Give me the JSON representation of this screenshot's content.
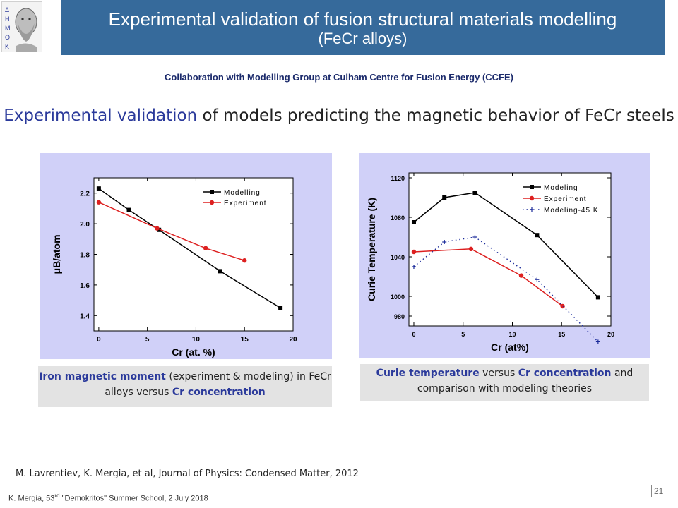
{
  "header": {
    "title": "Experimental validation  of fusion structural materials modelling",
    "subtitle": "(FeCr alloys)",
    "logo_icon": "democritus-logo-icon"
  },
  "collaboration": "Collaboration with Modelling Group at Culham Centre for Fusion Energy (CCFE)",
  "headline": {
    "highlight": "Experimental validation",
    "rest": " of models predicting the magnetic behavior of FeCr steels"
  },
  "caption_left": {
    "part1": "Iron magnetic moment",
    "part2": " (experiment & modeling) in FeCr alloys versus ",
    "part3": "Cr concentration"
  },
  "caption_right": {
    "part1": "Curie temperature",
    "part2": " versus ",
    "part3": "Cr concentration",
    "part4": " and comparison with modeling theories"
  },
  "reference": "M. Lavrentiev, K. Mergia, et al, Journal of Physics: Condensed Matter, 2012",
  "footer": {
    "author": "K. Mergia, 53",
    "sup": "rd",
    "rest": " \"Demokritos\" Summer School, 2 July 2018"
  },
  "page_number": "21",
  "chart_data": [
    {
      "type": "line",
      "xlabel": "Cr (at. %)",
      "ylabel": "μB/atom",
      "xlim": [
        -0.5,
        20
      ],
      "ylim": [
        1.3,
        2.3
      ],
      "xticks": [
        0,
        5,
        10,
        15,
        20
      ],
      "yticks": [
        1.4,
        1.6,
        1.8,
        2.0,
        2.2
      ],
      "xtick_labels": [
        "0",
        "5",
        "10",
        "15",
        "20"
      ],
      "ytick_labels": [
        "1.4",
        "1.6",
        "1.8",
        "2.0",
        "2.2"
      ],
      "legend": "top-right",
      "series": [
        {
          "name": "Modelling",
          "color": "#000000",
          "marker": "square",
          "x": [
            0,
            3.1,
            6.2,
            12.5,
            18.7
          ],
          "y": [
            2.23,
            2.09,
            1.96,
            1.69,
            1.45
          ]
        },
        {
          "name": "Experiment",
          "color": "#dd2020",
          "marker": "circle",
          "x": [
            0,
            6,
            11,
            15
          ],
          "y": [
            2.14,
            1.97,
            1.84,
            1.76
          ]
        }
      ]
    },
    {
      "type": "line",
      "xlabel": "Cr (at%)",
      "ylabel": "Curie Temperature (K)",
      "xlim": [
        -0.5,
        20
      ],
      "ylim": [
        970,
        1125
      ],
      "xticks": [
        0,
        5,
        10,
        15,
        20
      ],
      "yticks": [
        980,
        1000,
        1040,
        1080,
        1120
      ],
      "xtick_labels": [
        "0",
        "5",
        "10",
        "15",
        "20"
      ],
      "ytick_labels": [
        "980",
        "1000",
        "1040",
        "1080",
        "1120"
      ],
      "legend": "top-right",
      "series": [
        {
          "name": "Modeling",
          "color": "#000000",
          "marker": "square",
          "style": "solid",
          "x": [
            0,
            3.1,
            6.2,
            12.5,
            18.7
          ],
          "y": [
            1075,
            1100,
            1105,
            1062,
            999
          ]
        },
        {
          "name": "Experiment",
          "color": "#dd2020",
          "marker": "circle",
          "style": "solid",
          "x": [
            0,
            5.8,
            10.9,
            15.1
          ],
          "y": [
            1045,
            1048,
            1021,
            990
          ]
        },
        {
          "name": "Modeling-45 K",
          "color": "#1a2a9a",
          "marker": "plus",
          "style": "dotted",
          "x": [
            0,
            3.1,
            6.2,
            12.5,
            18.7
          ],
          "y": [
            1030,
            1055,
            1060,
            1017,
            954
          ]
        }
      ]
    }
  ]
}
